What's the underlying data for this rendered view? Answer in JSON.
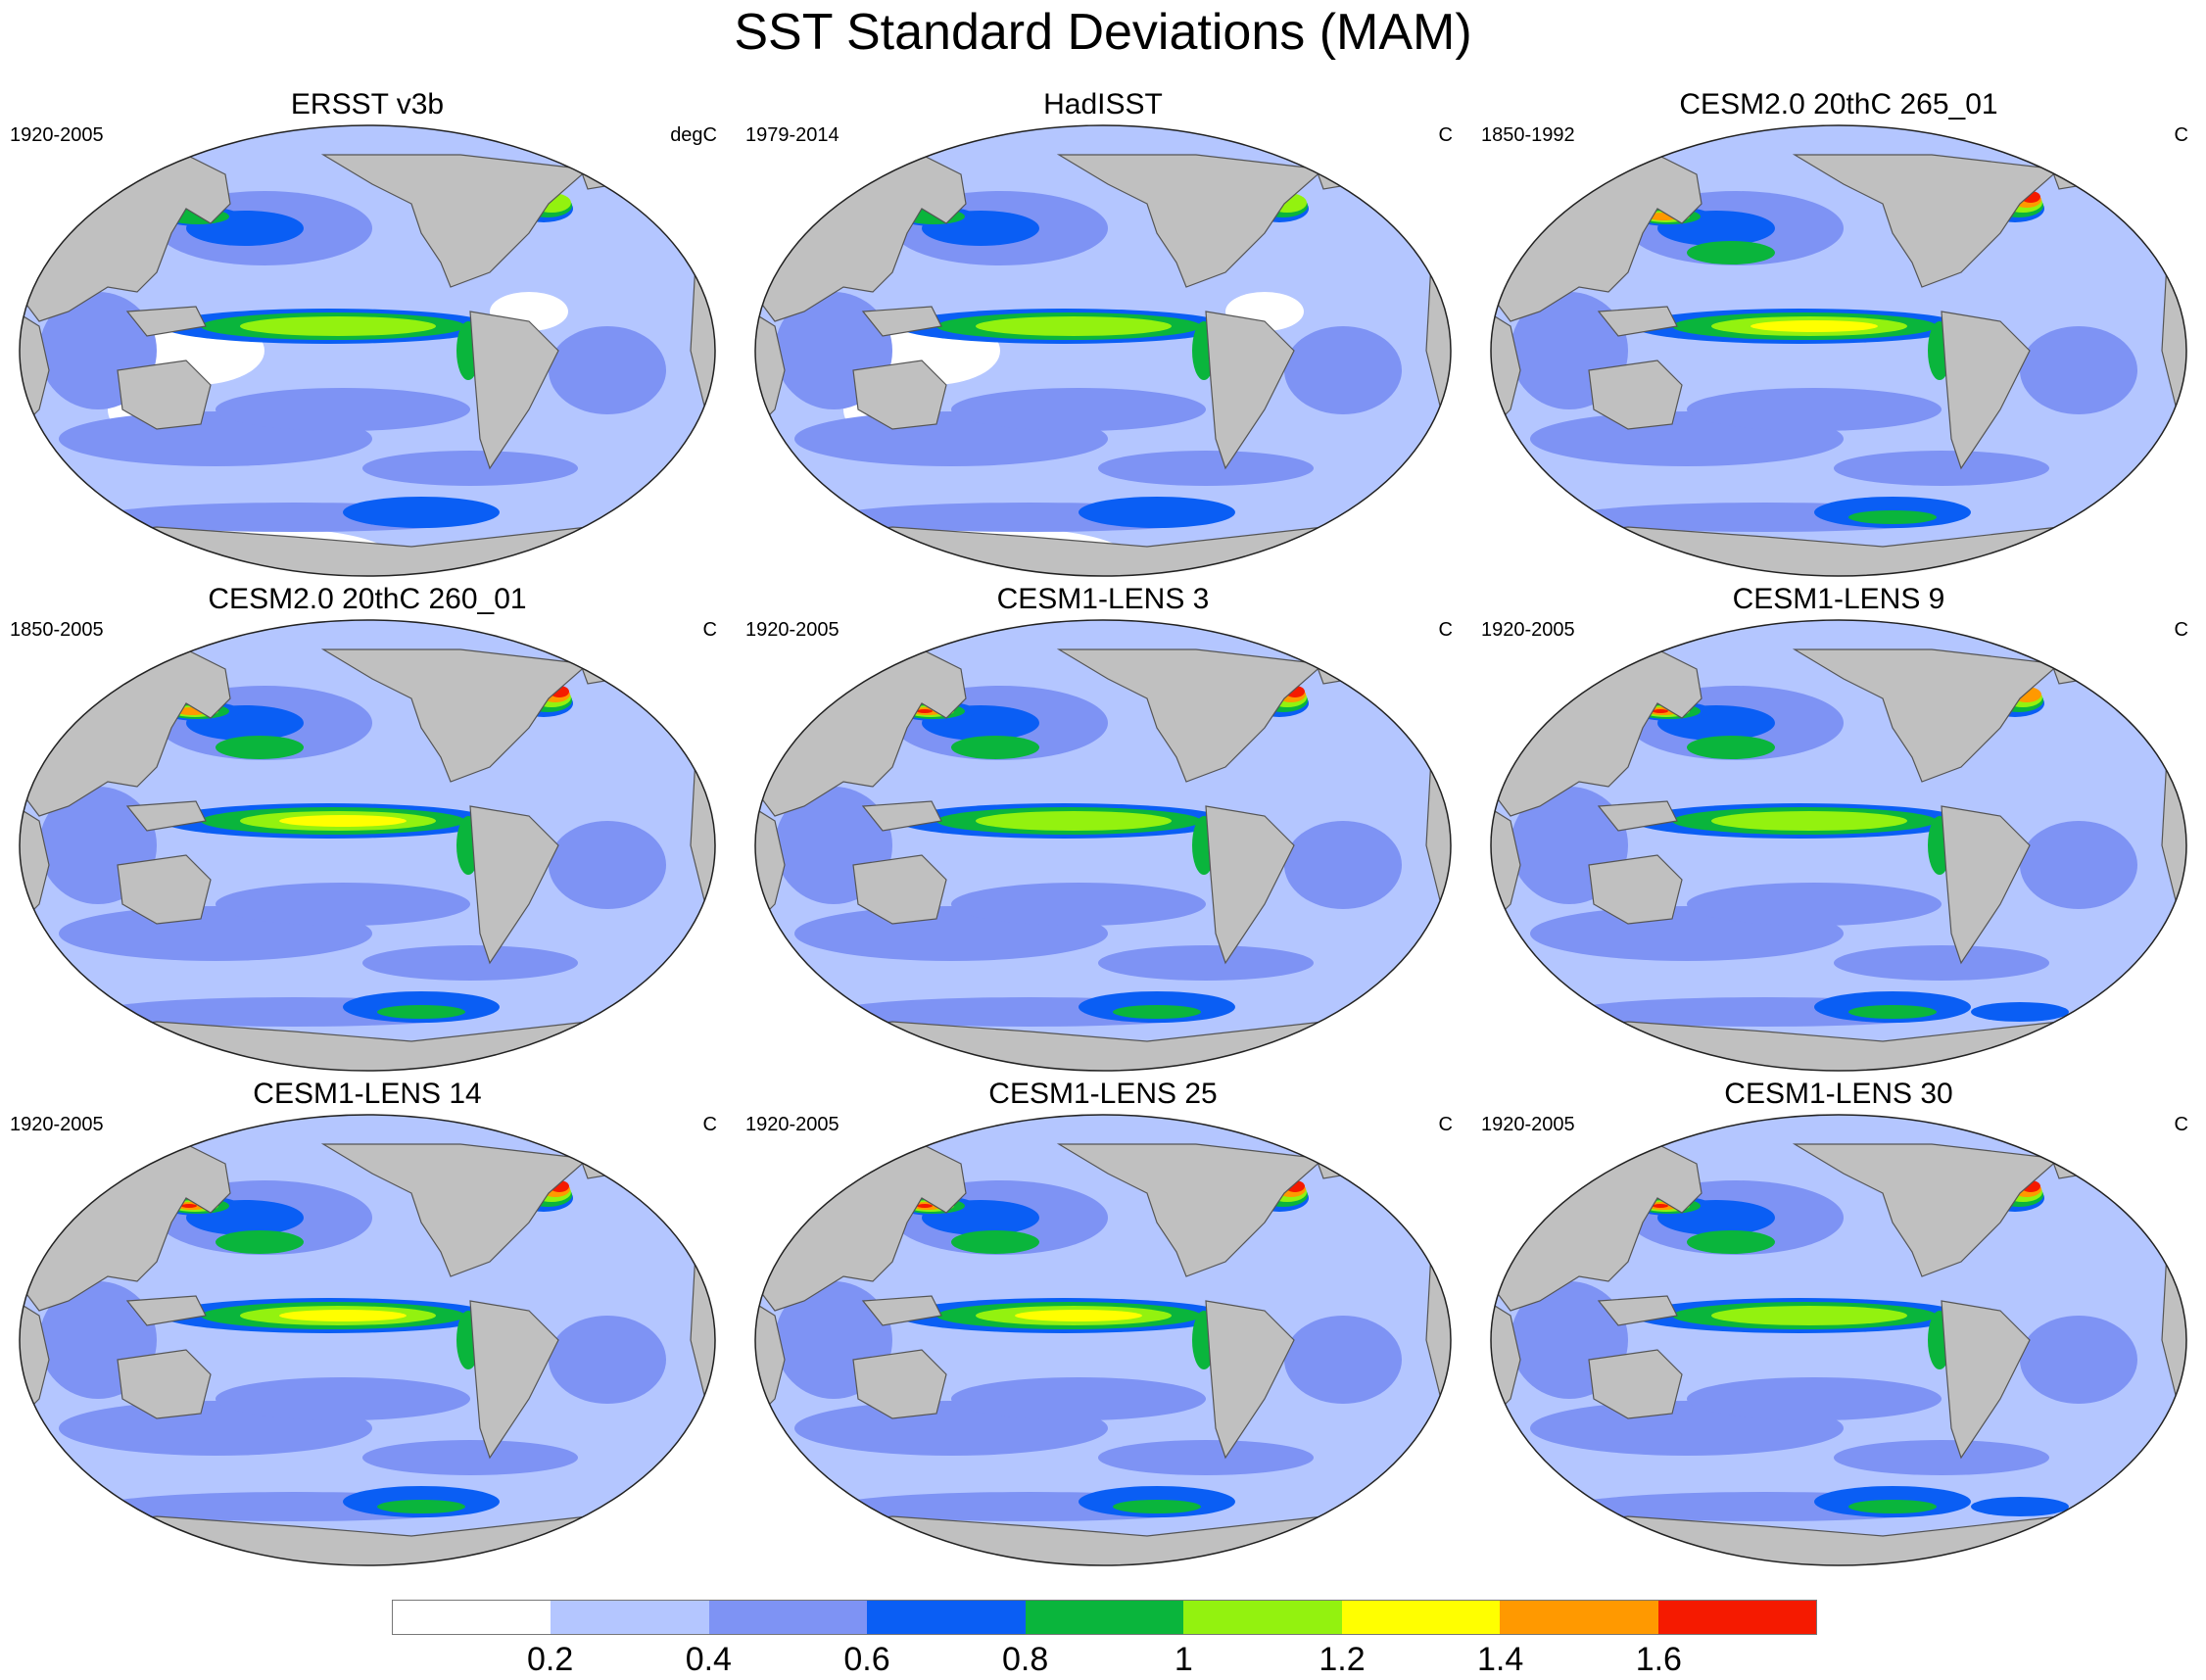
{
  "title": "SST Standard Deviations (MAM)",
  "colors": {
    "land": "#c0c0c0",
    "coast": "#555555",
    "levels": [
      "#ffffff",
      "#b4c6ff",
      "#7e93f4",
      "#0a5ef4",
      "#0ab53c",
      "#93f20f",
      "#ffff00",
      "#ff9900",
      "#f51a00"
    ]
  },
  "colorbar": {
    "labels": [
      "0.2",
      "0.4",
      "0.6",
      "0.8",
      "1",
      "1.2",
      "1.4",
      "1.6"
    ]
  },
  "panels": [
    {
      "title": "ERSST v3b",
      "period": "1920-2005",
      "units": "degC",
      "enso": 2,
      "kuroshio": 1,
      "gulf": 2,
      "south": 0,
      "cold_bias": true
    },
    {
      "title": "HadISST",
      "period": "1979-2014",
      "units": "C",
      "enso": 2,
      "kuroshio": 1,
      "gulf": 2,
      "south": 0,
      "cold_bias": true
    },
    {
      "title": "CESM2.0 20thC 265_01",
      "period": "1850-1992",
      "units": "C",
      "enso": 3,
      "kuroshio": 3,
      "gulf": 4,
      "south": 1,
      "cold_bias": false
    },
    {
      "title": "CESM2.0 20thC 260_01",
      "period": "1850-2005",
      "units": "C",
      "enso": 3,
      "kuroshio": 3,
      "gulf": 4,
      "south": 1,
      "cold_bias": false
    },
    {
      "title": "CESM1-LENS 3",
      "period": "1920-2005",
      "units": "C",
      "enso": 2,
      "kuroshio": 4,
      "gulf": 4,
      "south": 1,
      "cold_bias": false
    },
    {
      "title": "CESM1-LENS 9",
      "period": "1920-2005",
      "units": "C",
      "enso": 2,
      "kuroshio": 4,
      "gulf": 3,
      "south": 2,
      "cold_bias": false
    },
    {
      "title": "CESM1-LENS 14",
      "period": "1920-2005",
      "units": "C",
      "enso": 3,
      "kuroshio": 4,
      "gulf": 4,
      "south": 1,
      "cold_bias": false
    },
    {
      "title": "CESM1-LENS 25",
      "period": "1920-2005",
      "units": "C",
      "enso": 3,
      "kuroshio": 4,
      "gulf": 4,
      "south": 1,
      "cold_bias": false
    },
    {
      "title": "CESM1-LENS 30",
      "period": "1920-2005",
      "units": "C",
      "enso": 2,
      "kuroshio": 4,
      "gulf": 4,
      "south": 2,
      "cold_bias": false
    }
  ]
}
